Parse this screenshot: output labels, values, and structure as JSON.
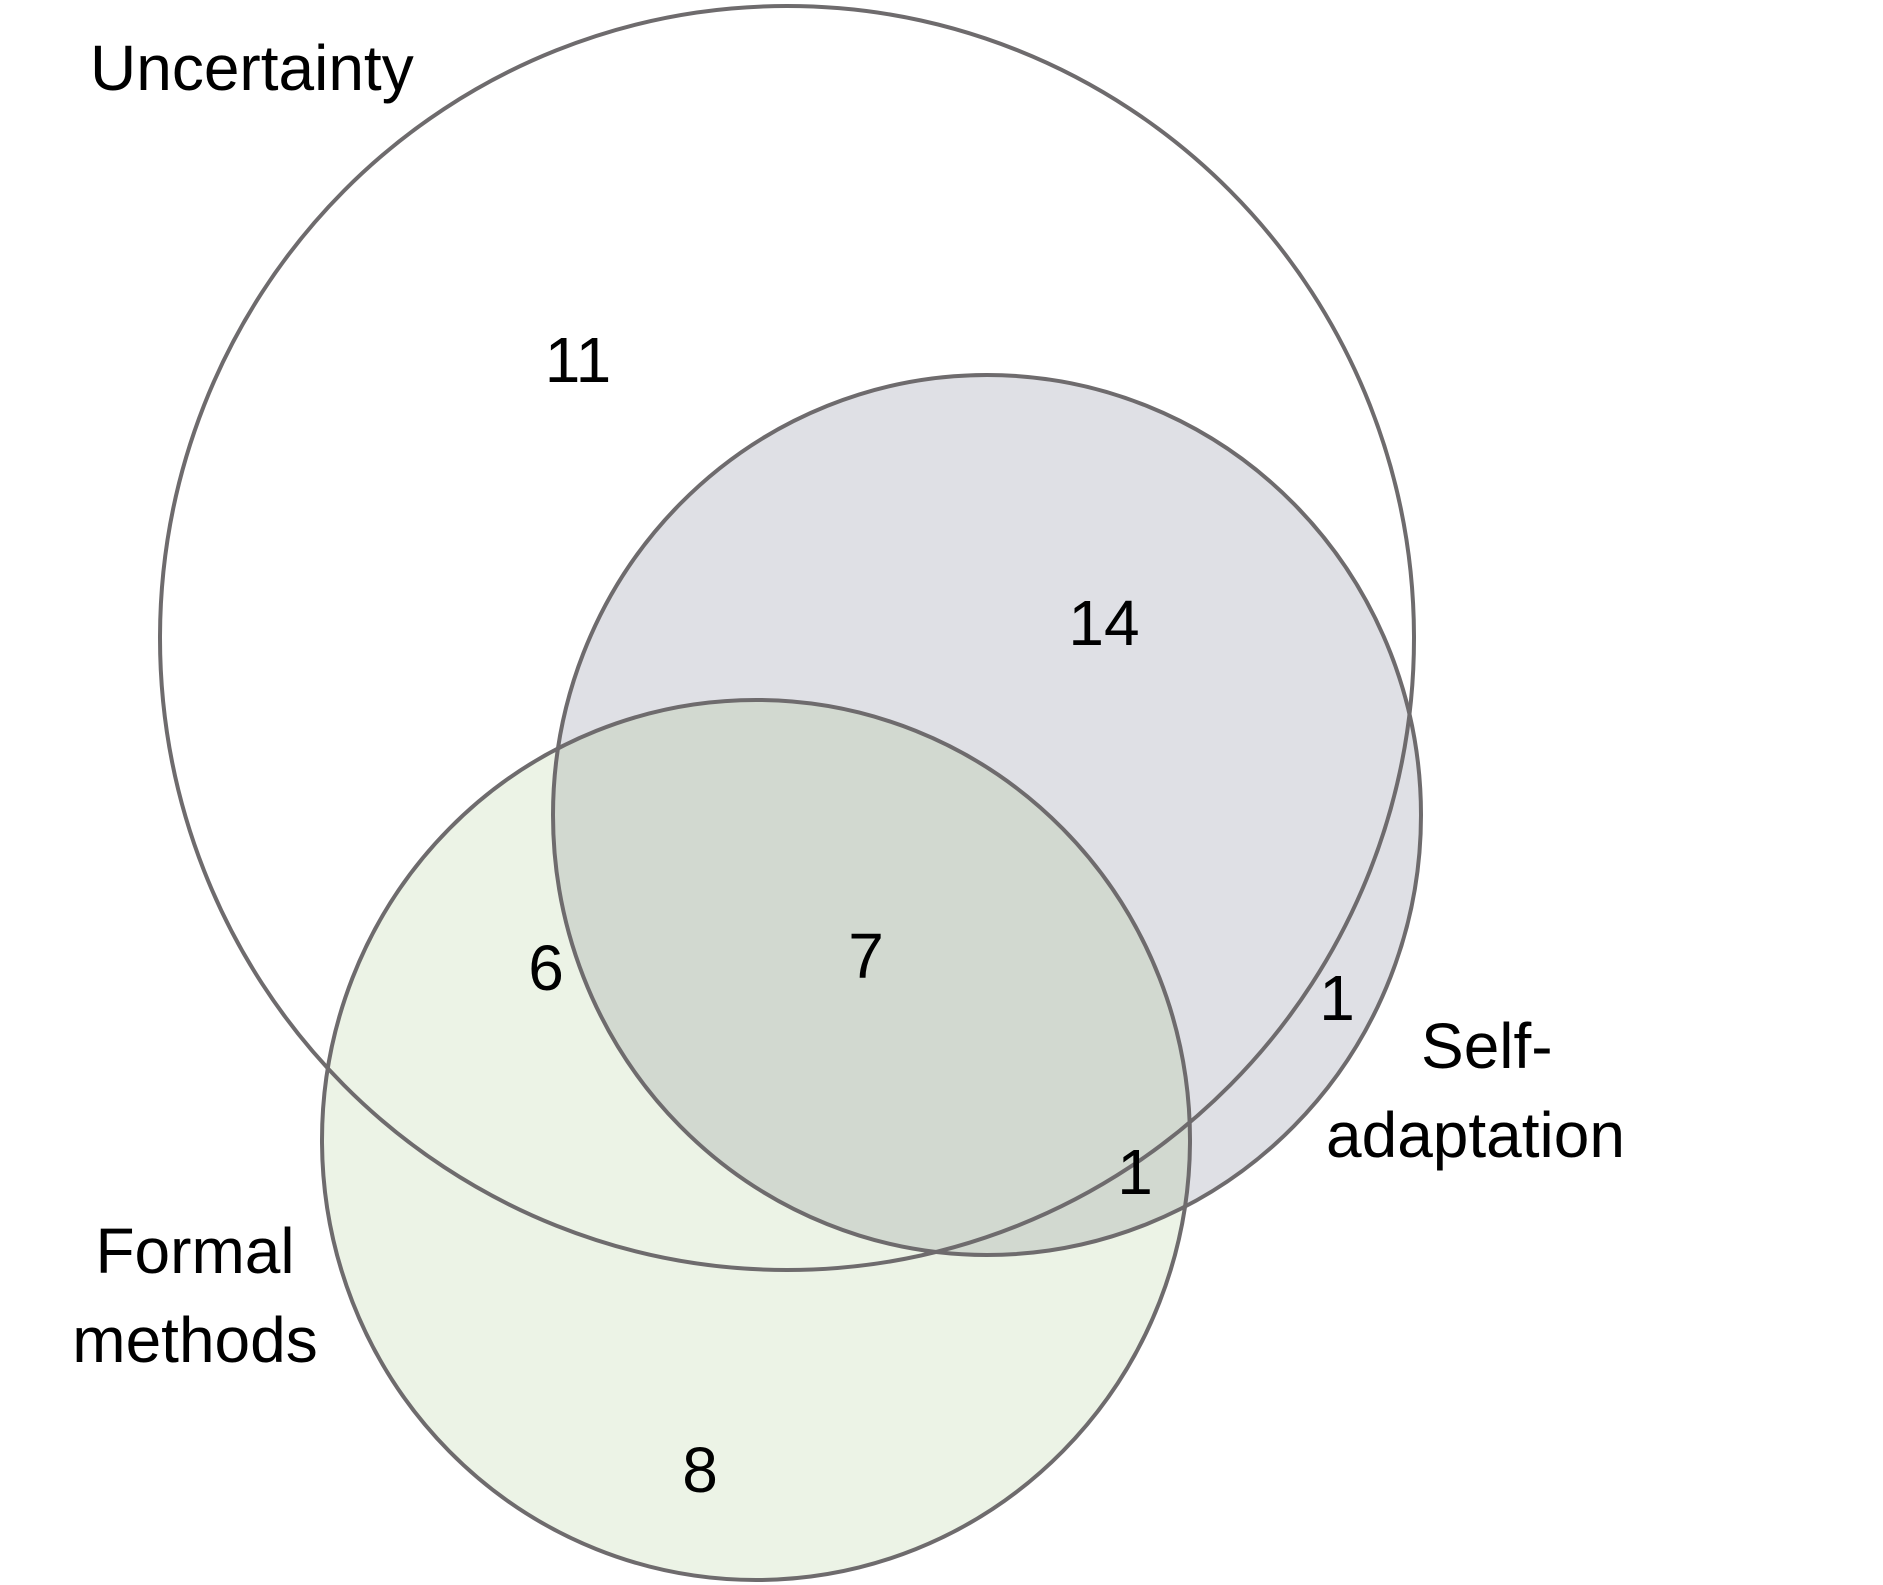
{
  "diagram": {
    "type": "venn",
    "sets": {
      "uncertainty": {
        "label": "Uncertainty"
      },
      "self_adaptation": {
        "label_line1": "Self-",
        "label_line2": "adaptation"
      },
      "formal_methods": {
        "label_line1": "Formal",
        "label_line2": "methods"
      }
    },
    "regions": {
      "uncertainty_only": "11",
      "uncertainty_and_self_adaptation": "14",
      "uncertainty_and_formal_methods": "6",
      "all_three": "7",
      "self_adaptation_only": "1",
      "self_adaptation_and_formal_methods": "1",
      "formal_methods_only": "8"
    },
    "colors": {
      "outline": "#6e6b6d",
      "self_adaptation_fill": "#dfe0e5",
      "formal_methods_fill": "#ecf3e6",
      "overlap_fill": "#d2d9d0"
    }
  }
}
